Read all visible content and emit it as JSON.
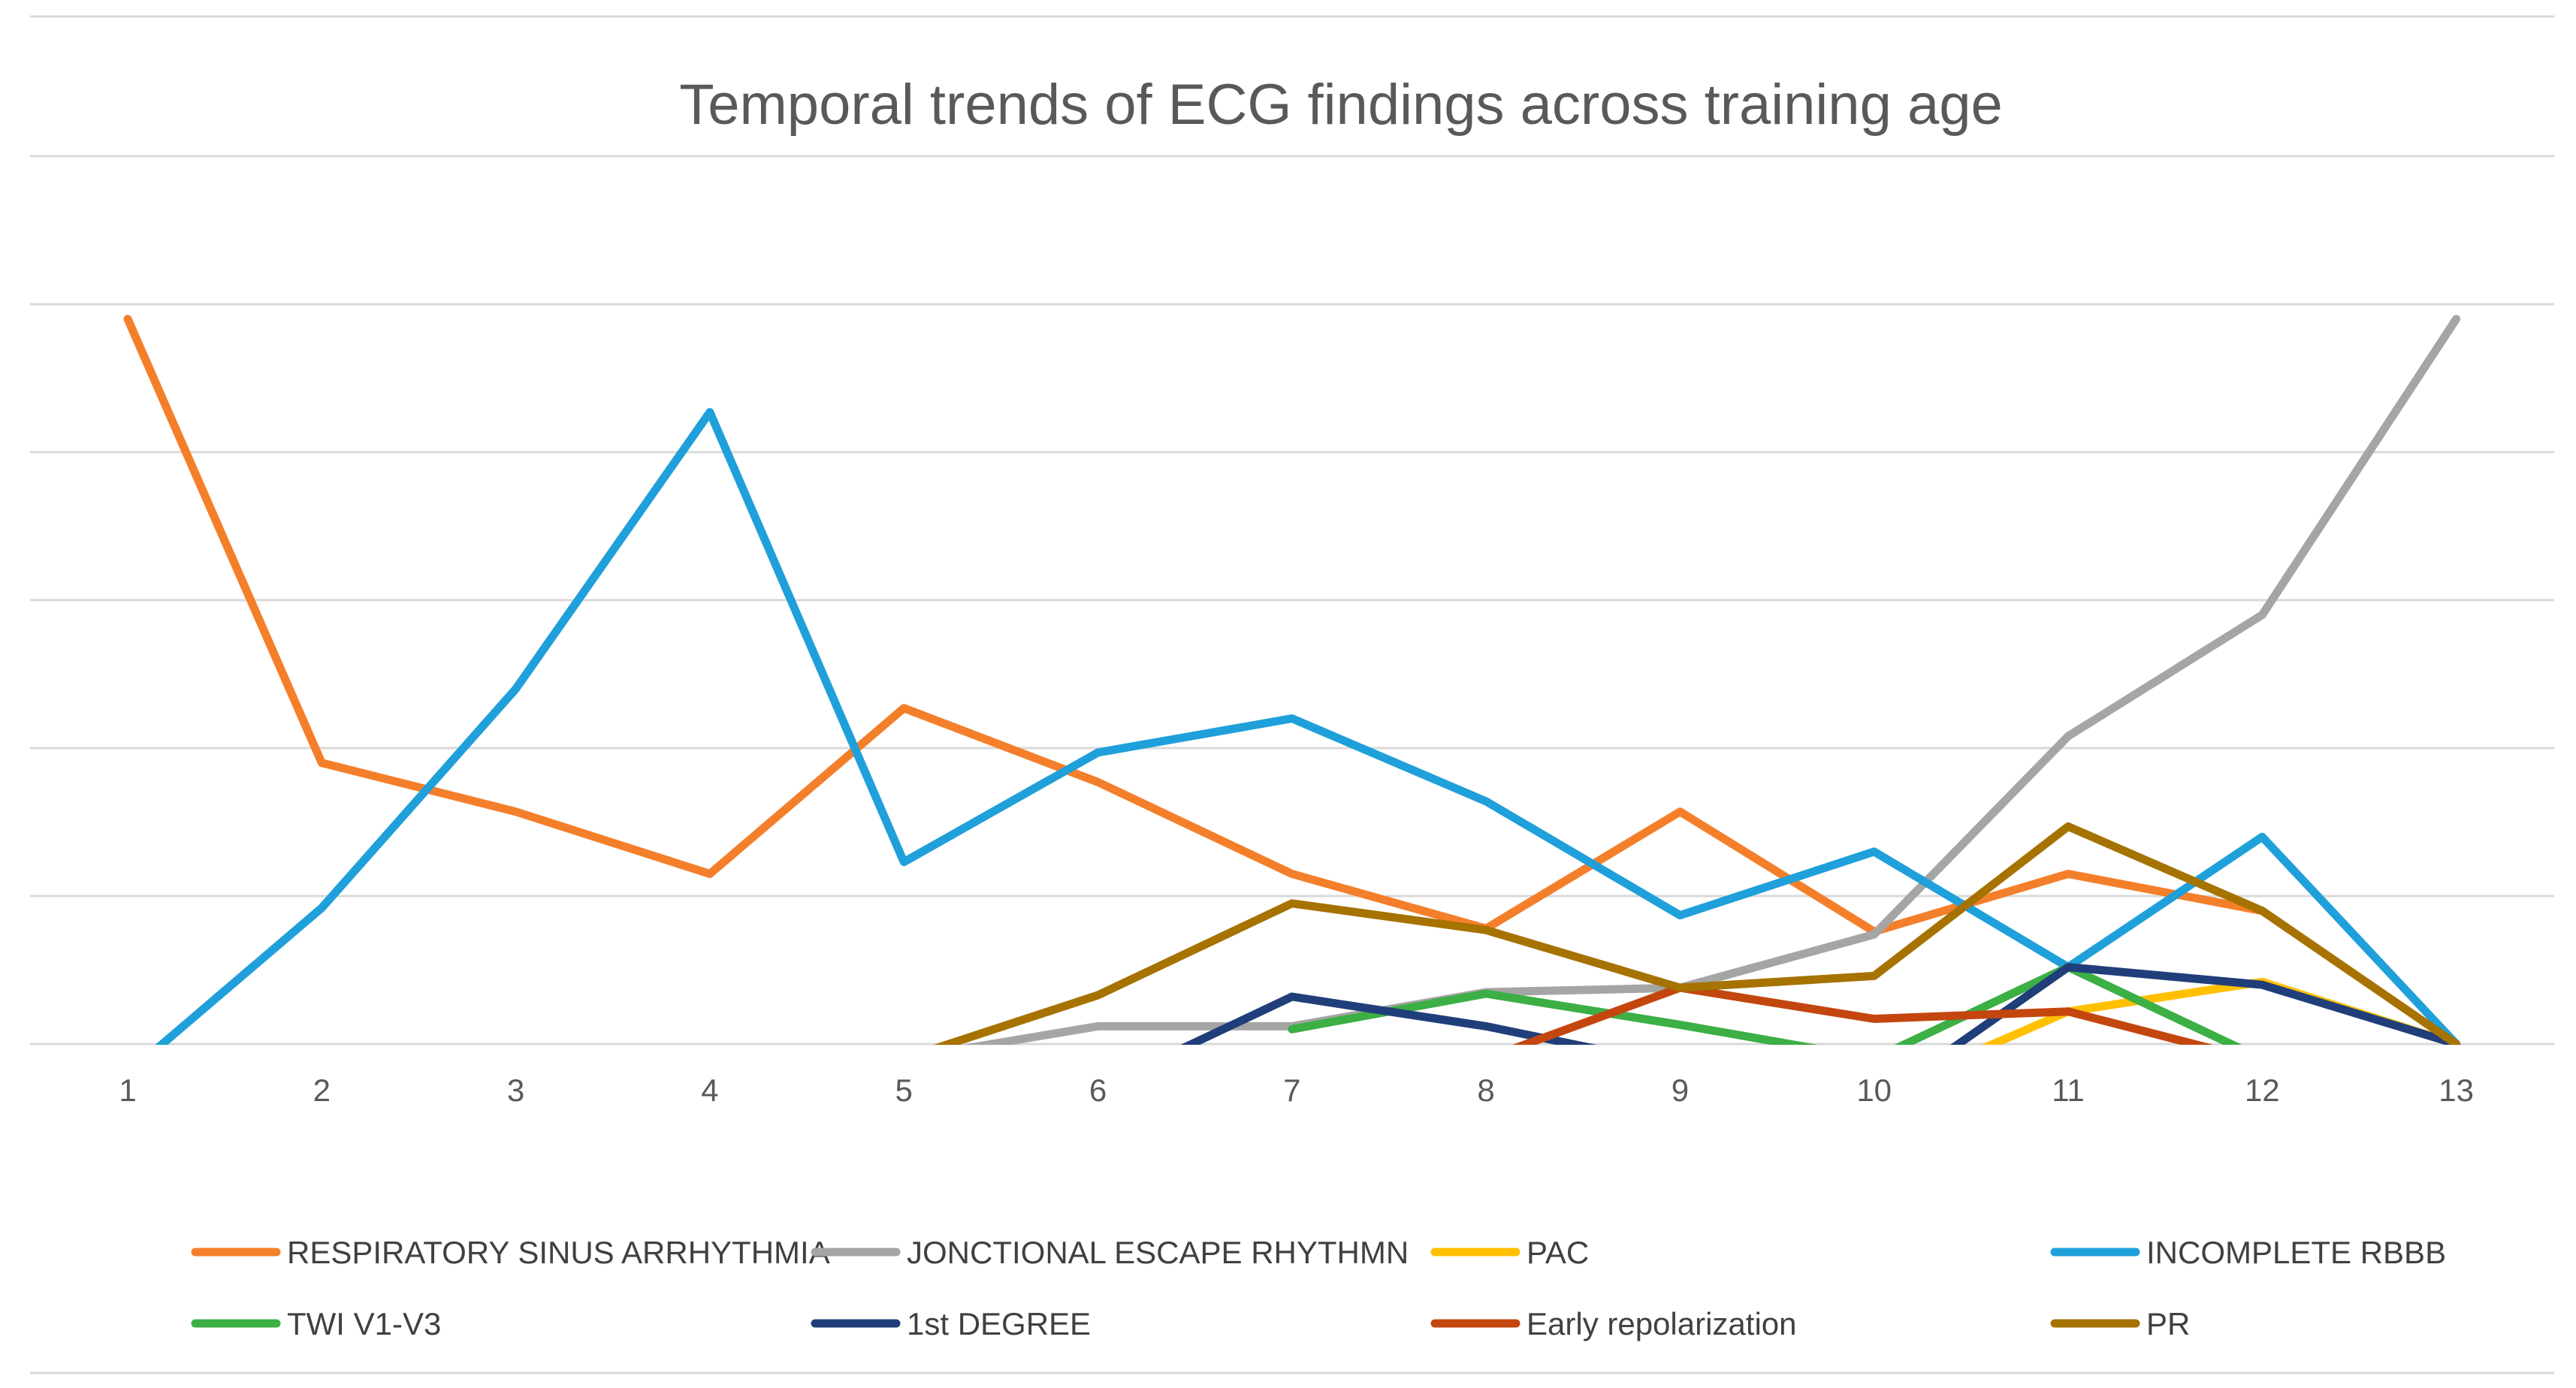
{
  "chart_data": {
    "type": "line",
    "title": "Temporal trends of ECG findings across training age",
    "xlabel": "",
    "ylabel": "",
    "categories": [
      "1",
      "2",
      "3",
      "4",
      "5",
      "6",
      "7",
      "8",
      "9",
      "10",
      "11",
      "12",
      "13"
    ],
    "ylim": [
      0,
      5
    ],
    "gridlines": [
      0,
      1,
      2,
      3,
      4,
      5,
      6
    ],
    "y_tick_labels_shown": false,
    "grid": true,
    "legend_position": "bottom",
    "series": [
      {
        "name": "RESPIRATORY SINUS ARRHYTHMIA",
        "color": "#F47F2A",
        "values": [
          4.9,
          1.9,
          1.57,
          1.15,
          2.27,
          1.77,
          1.15,
          0.78,
          1.57,
          0.76,
          1.15,
          0.9,
          0
        ]
      },
      {
        "name": "JONCTIONAL ESCAPE RHYTHMN",
        "color": "#A5A5A5",
        "values": [
          null,
          null,
          null,
          null,
          -0.1,
          0.12,
          0.12,
          0.35,
          0.38,
          0.74,
          2.08,
          2.9,
          4.9
        ]
      },
      {
        "name": "PAC",
        "color": "#FFC000",
        "values": [
          null,
          null,
          null,
          null,
          null,
          null,
          null,
          null,
          null,
          -0.35,
          0.22,
          0.42,
          0
        ]
      },
      {
        "name": "INCOMPLETE RBBB",
        "color": "#1FA0DA",
        "values": [
          -0.2,
          0.92,
          2.4,
          4.27,
          1.23,
          1.97,
          2.2,
          1.64,
          0.87,
          1.3,
          0.52,
          1.4,
          0
        ]
      },
      {
        "name": "TWI V1-V3",
        "color": "#3CAF45",
        "values": [
          null,
          null,
          null,
          null,
          null,
          null,
          0.1,
          0.34,
          0.13,
          -0.1,
          0.52,
          -0.1,
          null
        ]
      },
      {
        "name": "1st DEGREE",
        "color": "#203F7A",
        "values": [
          null,
          null,
          null,
          null,
          null,
          -0.3,
          0.32,
          0.12,
          -0.15,
          -0.4,
          0.52,
          0.4,
          0
        ]
      },
      {
        "name": "Early repolarization",
        "color": "#C4460F",
        "values": [
          null,
          null,
          null,
          null,
          null,
          null,
          null,
          -0.1,
          0.38,
          0.17,
          0.22,
          -0.12,
          null
        ]
      },
      {
        "name": "PR",
        "color": "#A67200",
        "values": [
          null,
          null,
          null,
          null,
          -0.1,
          0.33,
          0.95,
          0.77,
          0.38,
          0.46,
          1.47,
          0.9,
          0
        ]
      }
    ]
  }
}
